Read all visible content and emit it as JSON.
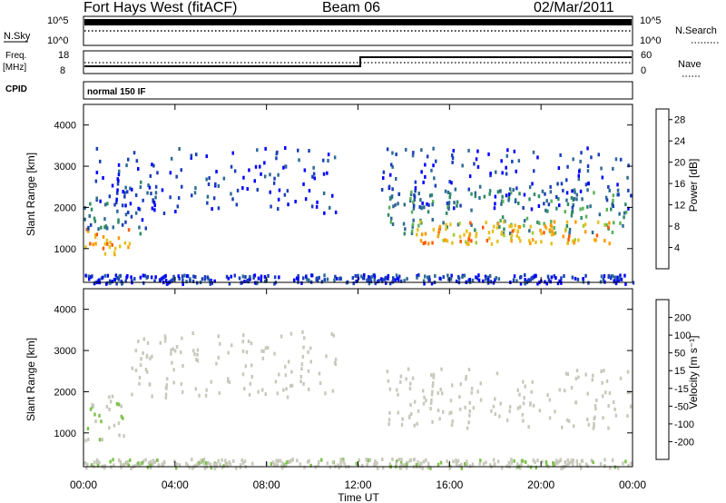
{
  "header": {
    "station": "Fort Hays West (fitACF)",
    "beam": "Beam 06",
    "date": "02/Mar/2011"
  },
  "top_panels": {
    "nsky_label": "N.Sky",
    "nsearch_label": "N.Search",
    "nsky_ticks": [
      "10^5",
      "10^0"
    ],
    "nsearch_ticks": [
      "10^5",
      "10^0"
    ],
    "freq_label": "Freq.",
    "freq_unit": "[MHz]",
    "freq_ticks": [
      "18",
      "8"
    ],
    "nave_label": "Nave",
    "nave_ticks": [
      "60",
      "0"
    ],
    "cpid_label": "CPID",
    "cpid_value": "normal 150 IF",
    "freq_step_hour": 12.1
  },
  "colors": {
    "power_scale": [
      "#0000ff",
      "#1a3fb8",
      "#2e6a95",
      "#2f8c64",
      "#5cb25a",
      "#a6cc33",
      "#e6c020",
      "#ff9a00",
      "#ff5a00",
      "#ff0000"
    ],
    "velocity_scale": [
      "#1515b0",
      "#2e6bb0",
      "#2f8f5a",
      "#7ec24f",
      "#c8c8bc",
      "#c8c8bc",
      "#f2b400",
      "#ff8c00",
      "#ff4800",
      "#ff0000"
    ]
  },
  "chart_data": [
    {
      "type": "heatmap",
      "name": "power",
      "ylabel": "Slant Range [km]",
      "xlim": [
        0,
        24
      ],
      "ylim": [
        180,
        4500
      ],
      "yticks": [
        "1000",
        "2000",
        "3000",
        "4000"
      ],
      "colorbar": {
        "label": "Power [dB]",
        "ticks": [
          "4",
          "8",
          "12",
          "16",
          "20",
          "24",
          "28"
        ],
        "range": [
          0,
          30
        ]
      },
      "bands": [
        {
          "t0": 0.0,
          "t1": 2.0,
          "r0": 850,
          "r1": 1550,
          "v": 22
        },
        {
          "t0": 0.0,
          "t1": 2.0,
          "r0": 1500,
          "r1": 2200,
          "v": 8
        },
        {
          "t0": 2.0,
          "t1": 3.0,
          "r0": 1300,
          "r1": 2700,
          "v": 6
        },
        {
          "t0": 0.5,
          "t1": 11.0,
          "r0": 1900,
          "r1": 3500,
          "v": 4
        },
        {
          "t0": 13.2,
          "t1": 23.8,
          "r0": 1400,
          "r1": 2500,
          "v": 10
        },
        {
          "t0": 14.5,
          "t1": 23.0,
          "r0": 1150,
          "r1": 1700,
          "v": 21
        },
        {
          "t0": 13.0,
          "t1": 23.9,
          "r0": 2000,
          "r1": 3500,
          "v": 4
        },
        {
          "t0": 0.0,
          "t1": 24.0,
          "r0": 180,
          "r1": 400,
          "v": 4
        }
      ]
    },
    {
      "type": "heatmap",
      "name": "velocity",
      "xlabel": "Time UT",
      "ylabel": "Slant Range [km]",
      "xlim": [
        0,
        24
      ],
      "ylim": [
        180,
        4500
      ],
      "xticks": [
        "00:00",
        "04:00",
        "08:00",
        "12:00",
        "16:00",
        "20:00",
        "00:00"
      ],
      "yticks": [
        "1000",
        "2000",
        "3000",
        "4000"
      ],
      "colorbar": {
        "label": "Velocity [m s⁻¹]",
        "ticks": [
          "200",
          "100",
          "50",
          "15",
          "-15",
          "-50",
          "-100",
          "-200"
        ],
        "range": [
          -250,
          250
        ]
      },
      "bands": [
        {
          "t0": 0.0,
          "t1": 2.0,
          "r0": 850,
          "r1": 2000,
          "v": -50
        },
        {
          "t0": 2.0,
          "t1": 11.0,
          "r0": 1900,
          "r1": 3500,
          "v": 0
        },
        {
          "t0": 13.2,
          "t1": 23.9,
          "r0": 1150,
          "r1": 2600,
          "v": 0
        },
        {
          "t0": 0.0,
          "t1": 24.0,
          "r0": 180,
          "r1": 400,
          "v": -30
        }
      ]
    }
  ]
}
